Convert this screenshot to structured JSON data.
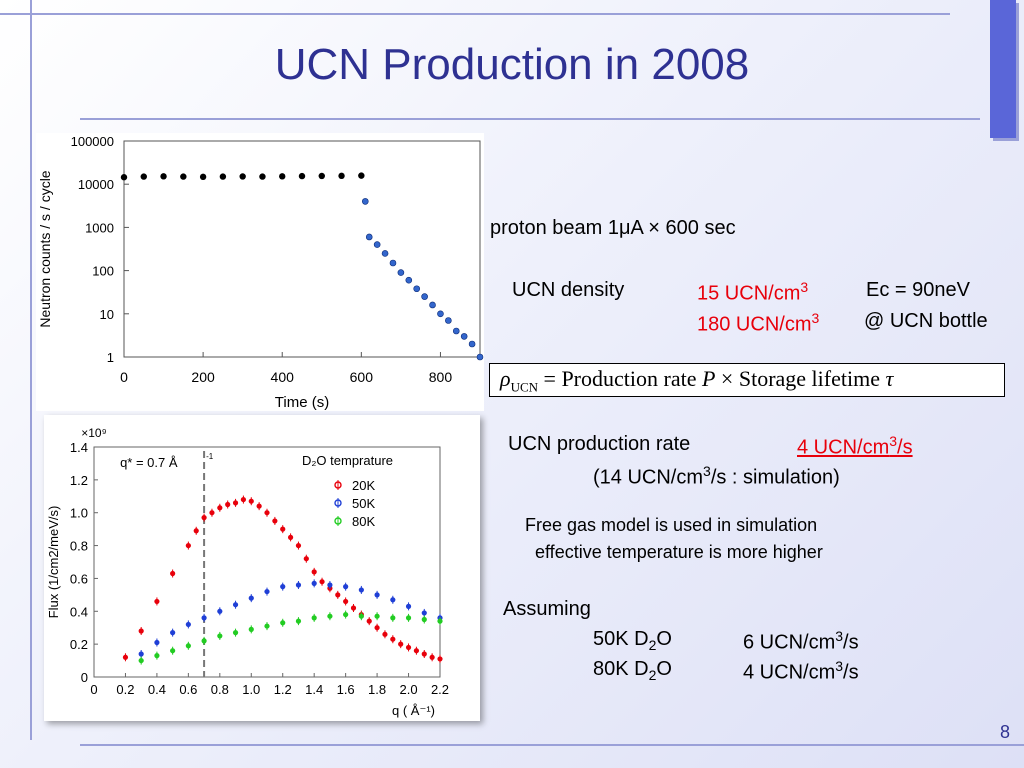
{
  "slide": {
    "title": "UCN Production in 2008",
    "page_number": "8"
  },
  "text": {
    "beam": "proton beam 1μA × 600 sec",
    "density_label": "UCN density",
    "density_val1": "15 UCN/cm",
    "density_val1_sup": "3",
    "ec": "Ec = 90neV",
    "density_val2": "180 UCN/cm",
    "density_val2_sup": "3",
    "bottle": "@ UCN bottle",
    "prod_label": "UCN production rate",
    "prod_val": "4 UCN/cm",
    "prod_val_sup": "3",
    "prod_val_tail": "/s",
    "sim_open": "(14 UCN/cm",
    "sim_sup": "3",
    "sim_tail": "/s  : simulation)",
    "note1": "Free gas model is used in simulation",
    "note2": "effective temperature is more higher",
    "assuming": "Assuming",
    "a1_d": "50K D",
    "a1_sub": "2",
    "a1_o": "O",
    "a1_v": "6 UCN/cm",
    "a1_sup": "3",
    "a1_tail": "/s",
    "a2_d": "80K D",
    "a2_sub": "2",
    "a2_o": "O",
    "a2_v": "4 UCN/cm",
    "a2_sup": "3",
    "a2_tail": "/s"
  },
  "formula": {
    "rho": "ρ",
    "rho_sub": "UCN",
    "eq": " = ",
    "text1": "Production rate  ",
    "P": "P",
    "times": " × ",
    "text2": "Storage lifetime ",
    "tau": "τ"
  },
  "chart_data": [
    {
      "type": "scatter",
      "title": "",
      "xlabel": "Time (s)",
      "ylabel": "Neutron counts / s / cycle",
      "xlim": [
        0,
        900
      ],
      "ylim": [
        1,
        100000
      ],
      "yscale": "log",
      "xticks": [
        "0",
        "200",
        "400",
        "600",
        "800"
      ],
      "yticks": [
        "1",
        "10",
        "100",
        "1000",
        "10000",
        "100000"
      ],
      "grid": false,
      "series": [
        {
          "color": "#000000",
          "x": [
            0,
            50,
            100,
            150,
            200,
            250,
            300,
            350,
            400,
            450,
            500,
            550,
            600
          ],
          "y": [
            14500,
            15000,
            15200,
            15000,
            14800,
            15000,
            15100,
            15000,
            15200,
            15400,
            15500,
            15600,
            15800
          ]
        },
        {
          "color": "#3366cc",
          "x": [
            610,
            620,
            640,
            660,
            680,
            700,
            720,
            740,
            760,
            780,
            800,
            820,
            840,
            860,
            880,
            900
          ],
          "y": [
            4000,
            600,
            400,
            250,
            150,
            90,
            60,
            38,
            25,
            16,
            10,
            7,
            4,
            3,
            2,
            1
          ]
        }
      ]
    },
    {
      "type": "scatter",
      "title": "",
      "xlabel": "q ( Å⁻¹)",
      "ylabel": "Flux (1/cm2/meV/s)",
      "multiplier": "×10⁹",
      "xlim": [
        0,
        2.2
      ],
      "ylim": [
        0,
        1.4
      ],
      "xticks": [
        "0",
        "0.2",
        "0.4",
        "0.6",
        "0.8",
        "1.0",
        "1.2",
        "1.4",
        "1.6",
        "1.8",
        "2.0",
        "2.2"
      ],
      "yticks": [
        "0",
        "0.2",
        "0.4",
        "0.6",
        "0.8",
        "1.0",
        "1.2",
        "1.4"
      ],
      "annotation": "q* = 0.7  Å",
      "annotation_sup": "-1",
      "qstar": 0.7,
      "legend_title": "D₂O temprature",
      "legend_position": "top-right",
      "series": [
        {
          "name": "20K",
          "color": "#e8000b",
          "x": [
            0.2,
            0.3,
            0.4,
            0.5,
            0.6,
            0.65,
            0.7,
            0.75,
            0.8,
            0.85,
            0.9,
            0.95,
            1.0,
            1.05,
            1.1,
            1.15,
            1.2,
            1.25,
            1.3,
            1.35,
            1.4,
            1.45,
            1.5,
            1.55,
            1.6,
            1.65,
            1.7,
            1.75,
            1.8,
            1.85,
            1.9,
            1.95,
            2.0,
            2.05,
            2.1,
            2.15,
            2.2
          ],
          "y": [
            0.12,
            0.28,
            0.46,
            0.63,
            0.8,
            0.89,
            0.97,
            1.0,
            1.03,
            1.05,
            1.06,
            1.08,
            1.07,
            1.04,
            1.0,
            0.95,
            0.9,
            0.85,
            0.8,
            0.72,
            0.64,
            0.58,
            0.54,
            0.5,
            0.46,
            0.42,
            0.38,
            0.34,
            0.3,
            0.26,
            0.23,
            0.2,
            0.18,
            0.16,
            0.14,
            0.12,
            0.11
          ]
        },
        {
          "name": "50K",
          "color": "#1f3fd6",
          "x": [
            0.3,
            0.4,
            0.5,
            0.6,
            0.7,
            0.8,
            0.9,
            1.0,
            1.1,
            1.2,
            1.3,
            1.4,
            1.5,
            1.6,
            1.7,
            1.8,
            1.9,
            2.0,
            2.1,
            2.2
          ],
          "y": [
            0.14,
            0.21,
            0.27,
            0.32,
            0.36,
            0.4,
            0.44,
            0.48,
            0.52,
            0.55,
            0.56,
            0.57,
            0.56,
            0.55,
            0.53,
            0.5,
            0.47,
            0.43,
            0.39,
            0.36
          ]
        },
        {
          "name": "80K",
          "color": "#22cc22",
          "x": [
            0.3,
            0.4,
            0.5,
            0.6,
            0.7,
            0.8,
            0.9,
            1.0,
            1.1,
            1.2,
            1.3,
            1.4,
            1.5,
            1.6,
            1.7,
            1.8,
            1.9,
            2.0,
            2.1,
            2.2
          ],
          "y": [
            0.1,
            0.13,
            0.16,
            0.19,
            0.22,
            0.25,
            0.27,
            0.29,
            0.31,
            0.33,
            0.34,
            0.36,
            0.37,
            0.38,
            0.37,
            0.37,
            0.36,
            0.36,
            0.35,
            0.34
          ]
        }
      ]
    }
  ]
}
